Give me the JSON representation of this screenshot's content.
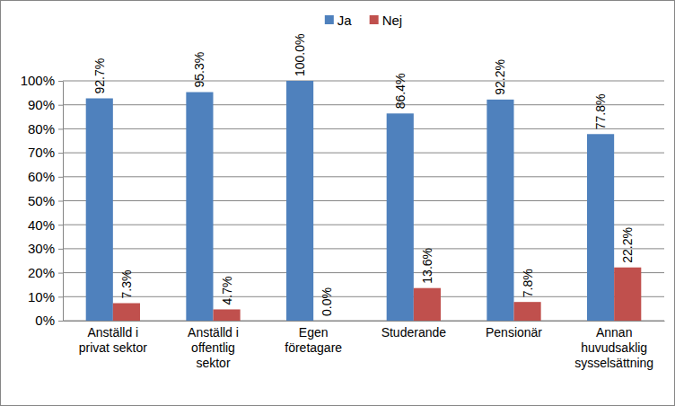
{
  "chart_data": {
    "type": "bar",
    "categories": [
      "Anställd i privat sektor",
      "Anställd i offentlig sektor",
      "Egen företagare",
      "Studerande",
      "Pensionär",
      "Annan huvudsaklig sysselsättning"
    ],
    "series": [
      {
        "name": "Ja",
        "color": "#4f81bd",
        "values": [
          92.7,
          95.3,
          100.0,
          86.4,
          92.2,
          77.8
        ],
        "value_labels": [
          "92.7%",
          "95.3%",
          "100.0%",
          "86.4%",
          "92.2%",
          "77.8%"
        ]
      },
      {
        "name": "Nej",
        "color": "#c0504d",
        "values": [
          7.3,
          4.7,
          0.0,
          13.6,
          7.8,
          22.2
        ],
        "value_labels": [
          "7.3%",
          "4.7%",
          "0.0%",
          "13.6%",
          "7.8%",
          "22.2%"
        ]
      }
    ],
    "ylim": [
      0,
      100
    ],
    "yticks": [
      {
        "value": 0,
        "label": "0%"
      },
      {
        "value": 10,
        "label": "10%"
      },
      {
        "value": 20,
        "label": "20%"
      },
      {
        "value": 30,
        "label": "30%"
      },
      {
        "value": 40,
        "label": "40%"
      },
      {
        "value": 50,
        "label": "50%"
      },
      {
        "value": 60,
        "label": "60%"
      },
      {
        "value": 70,
        "label": "70%"
      },
      {
        "value": 80,
        "label": "80%"
      },
      {
        "value": 90,
        "label": "90%"
      },
      {
        "value": 100,
        "label": "100%"
      }
    ],
    "grid": true,
    "legend": "top",
    "data_labels": true
  }
}
